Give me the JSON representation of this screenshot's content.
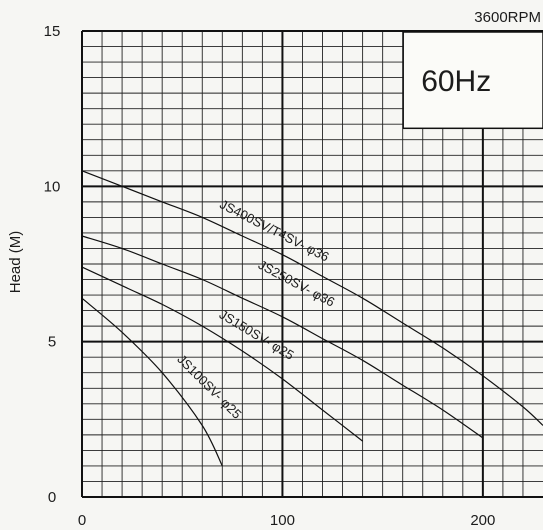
{
  "chart_data": {
    "type": "line",
    "ylabel": "Head (M)",
    "xlabel": "",
    "xlim": [
      0,
      230
    ],
    "ylim": [
      0,
      15
    ],
    "x_ticks": [
      {
        "value": 0,
        "label": "0"
      },
      {
        "value": 100,
        "label": "100"
      },
      {
        "value": 200,
        "label": "200"
      }
    ],
    "y_ticks": [
      {
        "value": 0,
        "label": "0"
      },
      {
        "value": 5,
        "label": "5"
      },
      {
        "value": 10,
        "label": "10"
      },
      {
        "value": 15,
        "label": "15"
      }
    ],
    "grid": true,
    "annotations": {
      "rpm": "3600RPM",
      "frequency": "60Hz"
    },
    "series": [
      {
        "name": "JS400SV/T4SV- φ36",
        "x": [
          0,
          20,
          40,
          60,
          80,
          100,
          120,
          140,
          160,
          180,
          200,
          220,
          230
        ],
        "y": [
          10.5,
          10.0,
          9.5,
          9.0,
          8.4,
          7.8,
          7.1,
          6.4,
          5.6,
          4.8,
          3.9,
          2.9,
          2.3
        ]
      },
      {
        "name": "JS250SV- φ36",
        "x": [
          0,
          20,
          40,
          60,
          80,
          100,
          120,
          140,
          160,
          180,
          200
        ],
        "y": [
          8.4,
          8.0,
          7.5,
          7.0,
          6.4,
          5.8,
          5.1,
          4.4,
          3.6,
          2.8,
          1.9
        ]
      },
      {
        "name": "JS150SV- φ25",
        "x": [
          0,
          20,
          40,
          60,
          80,
          100,
          120,
          140
        ],
        "y": [
          7.4,
          6.8,
          6.2,
          5.5,
          4.7,
          3.8,
          2.8,
          1.8
        ]
      },
      {
        "name": "JS100SV- φ25",
        "x": [
          0,
          20,
          40,
          60,
          70
        ],
        "y": [
          6.4,
          5.3,
          4.0,
          2.3,
          1.0
        ]
      }
    ]
  }
}
